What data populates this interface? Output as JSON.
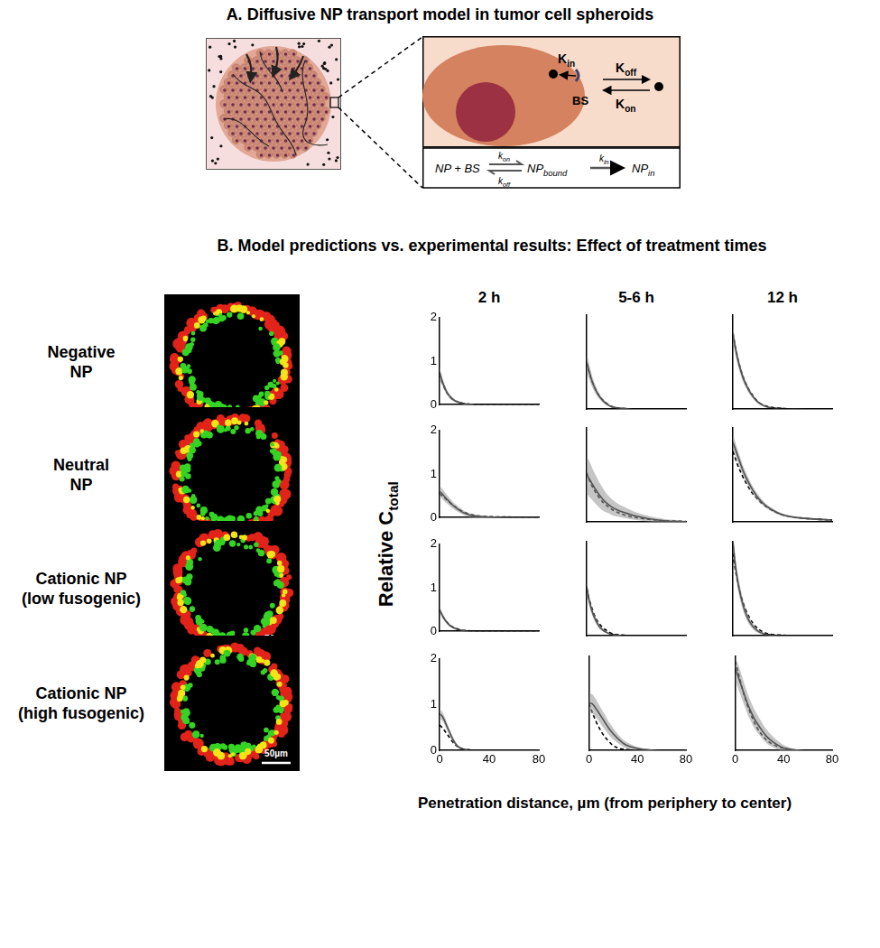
{
  "panel_a": {
    "title": "A. Diffusive NP transport model in tumor cell spheroids",
    "rate_in": {
      "text": "K",
      "subscript": "in"
    },
    "binding_site": "BS",
    "rate_off": {
      "text": "K",
      "subscript": "off"
    },
    "rate_on": {
      "text": "K",
      "subscript": "on"
    },
    "scheme": {
      "reactants": "NP + BS",
      "k_on": {
        "text": "k",
        "subscript": "on"
      },
      "k_off": {
        "text": "k",
        "subscript": "off"
      },
      "bound": {
        "text": "NP",
        "subscript": "bound"
      },
      "k_in": {
        "text": "k",
        "subscript": "in"
      },
      "product": {
        "text": "NP",
        "subscript": "in"
      }
    }
  },
  "panel_b": {
    "title": "B.  Model predictions vs. experimental results: Effect of treatment times",
    "columns": [
      "2 h",
      "5-6 h",
      "12 h"
    ],
    "rows": [
      [
        "Negative",
        "NP"
      ],
      [
        "Neutral",
        "NP"
      ],
      [
        "Cationic NP",
        "(low fusogenic)"
      ],
      [
        "Cationic NP",
        "(high fusogenic)"
      ]
    ],
    "scale_bar": "50µm",
    "y_label": {
      "text": "Relative C",
      "subscript": "total"
    },
    "x_label": "Penetration distance, µm (from periphery to center)"
  },
  "chart_data": [
    {
      "type": "line",
      "x": [
        0,
        2,
        4,
        6,
        8,
        10,
        13,
        16,
        20,
        25,
        30,
        40,
        60,
        80
      ],
      "xlim": [
        0,
        80
      ],
      "xticks": [
        0,
        40,
        80
      ],
      "ylim": [
        0,
        2
      ],
      "yticks": [
        0,
        1,
        2
      ],
      "grid": false,
      "tick_labels": "y",
      "series": [
        {
          "color": "#000000",
          "line_style": "solid",
          "values": [
            0.75,
            0.55,
            0.4,
            0.28,
            0.2,
            0.14,
            0.08,
            0.05,
            0.02,
            0.01,
            0,
            0,
            0,
            0
          ],
          "error": [
            0.12,
            0.1,
            0.08,
            0.06,
            0.05,
            0.04,
            0.03,
            0.02,
            0.01,
            0.01,
            0,
            0,
            0,
            0
          ]
        },
        {
          "color": "#000000",
          "line_style": "dashed",
          "values": [
            0.7,
            0.52,
            0.38,
            0.27,
            0.19,
            0.13,
            0.08,
            0.05,
            0.02,
            0.01,
            0,
            0,
            0,
            0
          ]
        }
      ]
    },
    {
      "type": "line",
      "x": [
        0,
        2,
        4,
        6,
        8,
        10,
        13,
        16,
        20,
        25,
        30,
        40,
        60,
        80
      ],
      "xlim": [
        0,
        80
      ],
      "xticks": [
        0,
        40,
        80
      ],
      "ylim": [
        0,
        2
      ],
      "yticks": [
        0,
        1,
        2
      ],
      "grid": false,
      "tick_labels": false,
      "series": [
        {
          "color": "#000000",
          "line_style": "solid",
          "values": [
            1.0,
            0.8,
            0.62,
            0.48,
            0.37,
            0.28,
            0.18,
            0.11,
            0.05,
            0.02,
            0.01,
            0,
            0,
            0
          ],
          "error": [
            0.2,
            0.16,
            0.13,
            0.1,
            0.08,
            0.06,
            0.04,
            0.03,
            0.02,
            0.01,
            0.01,
            0,
            0,
            0
          ]
        },
        {
          "color": "#000000",
          "line_style": "dashed",
          "values": [
            0.98,
            0.78,
            0.61,
            0.48,
            0.37,
            0.29,
            0.19,
            0.12,
            0.06,
            0.02,
            0.01,
            0,
            0,
            0
          ]
        }
      ]
    },
    {
      "type": "line",
      "x": [
        0,
        2,
        4,
        6,
        8,
        10,
        13,
        16,
        20,
        25,
        30,
        40,
        60,
        80
      ],
      "xlim": [
        0,
        80
      ],
      "xticks": [
        0,
        40,
        80
      ],
      "ylim": [
        0,
        2
      ],
      "yticks": [
        0,
        1,
        2
      ],
      "grid": false,
      "tick_labels": false,
      "series": [
        {
          "color": "#000000",
          "line_style": "solid",
          "values": [
            1.6,
            1.3,
            1.05,
            0.85,
            0.68,
            0.55,
            0.39,
            0.27,
            0.15,
            0.07,
            0.03,
            0.01,
            0,
            0
          ],
          "error": [
            0.15,
            0.14,
            0.12,
            0.1,
            0.09,
            0.07,
            0.06,
            0.04,
            0.03,
            0.02,
            0.01,
            0,
            0,
            0
          ]
        },
        {
          "color": "#000000",
          "line_style": "dashed",
          "values": [
            1.62,
            1.32,
            1.07,
            0.87,
            0.7,
            0.57,
            0.41,
            0.29,
            0.16,
            0.08,
            0.04,
            0.01,
            0,
            0
          ]
        }
      ]
    },
    {
      "type": "line",
      "x": [
        0,
        2,
        4,
        6,
        8,
        10,
        13,
        16,
        20,
        25,
        30,
        40,
        60,
        80
      ],
      "xlim": [
        0,
        80
      ],
      "xticks": [
        0,
        40,
        80
      ],
      "ylim": [
        0,
        2
      ],
      "yticks": [
        0,
        1,
        2
      ],
      "grid": false,
      "tick_labels": "y",
      "series": [
        {
          "color": "#000000",
          "line_style": "solid",
          "values": [
            0.6,
            0.55,
            0.48,
            0.42,
            0.36,
            0.3,
            0.23,
            0.17,
            0.1,
            0.05,
            0.03,
            0.01,
            0,
            0
          ],
          "error": [
            0.12,
            0.12,
            0.11,
            0.1,
            0.09,
            0.08,
            0.07,
            0.06,
            0.05,
            0.04,
            0.03,
            0.02,
            0.01,
            0.01
          ]
        },
        {
          "color": "#000000",
          "line_style": "dashed",
          "values": [
            0.55,
            0.5,
            0.45,
            0.4,
            0.35,
            0.3,
            0.24,
            0.18,
            0.12,
            0.07,
            0.04,
            0.02,
            0.01,
            0
          ]
        }
      ]
    },
    {
      "type": "line",
      "x": [
        0,
        2,
        4,
        6,
        8,
        10,
        13,
        16,
        20,
        25,
        30,
        40,
        60,
        80
      ],
      "xlim": [
        0,
        80
      ],
      "xticks": [
        0,
        40,
        80
      ],
      "ylim": [
        0,
        2
      ],
      "yticks": [
        0,
        1,
        2
      ],
      "grid": false,
      "tick_labels": false,
      "series": [
        {
          "color": "#000000",
          "line_style": "solid",
          "values": [
            1.0,
            0.92,
            0.83,
            0.74,
            0.66,
            0.58,
            0.48,
            0.4,
            0.32,
            0.25,
            0.2,
            0.12,
            0.03,
            0
          ],
          "error": [
            0.4,
            0.38,
            0.35,
            0.32,
            0.3,
            0.27,
            0.24,
            0.2,
            0.17,
            0.14,
            0.12,
            0.08,
            0.04,
            0.02
          ]
        },
        {
          "color": "#000000",
          "line_style": "dashed",
          "values": [
            1.05,
            0.9,
            0.78,
            0.68,
            0.6,
            0.52,
            0.42,
            0.35,
            0.27,
            0.2,
            0.15,
            0.09,
            0.03,
            0.01
          ]
        }
      ]
    },
    {
      "type": "line",
      "x": [
        0,
        2,
        4,
        6,
        8,
        10,
        13,
        16,
        20,
        25,
        30,
        40,
        60,
        80
      ],
      "xlim": [
        0,
        80
      ],
      "xticks": [
        0,
        40,
        80
      ],
      "ylim": [
        0,
        2
      ],
      "yticks": [
        0,
        1,
        2
      ],
      "grid": false,
      "tick_labels": false,
      "series": [
        {
          "color": "#000000",
          "line_style": "solid",
          "values": [
            1.7,
            1.55,
            1.4,
            1.25,
            1.1,
            0.98,
            0.82,
            0.68,
            0.52,
            0.38,
            0.28,
            0.15,
            0.07,
            0.04
          ],
          "error": [
            0.15,
            0.14,
            0.13,
            0.12,
            0.11,
            0.1,
            0.09,
            0.08,
            0.07,
            0.05,
            0.04,
            0.03,
            0.02,
            0.01
          ]
        },
        {
          "color": "#000000",
          "line_style": "dashed",
          "values": [
            1.5,
            1.35,
            1.2,
            1.08,
            0.96,
            0.86,
            0.72,
            0.6,
            0.48,
            0.36,
            0.27,
            0.15,
            0.07,
            0.04
          ]
        }
      ]
    },
    {
      "type": "line",
      "x": [
        0,
        2,
        4,
        6,
        8,
        10,
        13,
        16,
        20,
        25,
        30,
        40,
        60,
        80
      ],
      "xlim": [
        0,
        80
      ],
      "xticks": [
        0,
        40,
        80
      ],
      "ylim": [
        0,
        2
      ],
      "yticks": [
        0,
        1,
        2
      ],
      "grid": false,
      "tick_labels": "y",
      "series": [
        {
          "color": "#000000",
          "line_style": "solid",
          "values": [
            0.5,
            0.38,
            0.28,
            0.2,
            0.14,
            0.1,
            0.06,
            0.03,
            0.01,
            0,
            0,
            0,
            0,
            0
          ],
          "error": [
            0.08,
            0.06,
            0.05,
            0.04,
            0.03,
            0.02,
            0.02,
            0.01,
            0.01,
            0,
            0,
            0,
            0,
            0
          ]
        },
        {
          "color": "#000000",
          "line_style": "dashed",
          "values": [
            0.48,
            0.37,
            0.28,
            0.21,
            0.15,
            0.11,
            0.07,
            0.04,
            0.02,
            0.01,
            0,
            0,
            0,
            0
          ]
        }
      ]
    },
    {
      "type": "line",
      "x": [
        0,
        2,
        4,
        6,
        8,
        10,
        13,
        16,
        20,
        25,
        30,
        40,
        60,
        80
      ],
      "xlim": [
        0,
        80
      ],
      "xticks": [
        0,
        40,
        80
      ],
      "ylim": [
        0,
        2
      ],
      "yticks": [
        0,
        1,
        2
      ],
      "grid": false,
      "tick_labels": false,
      "series": [
        {
          "color": "#000000",
          "line_style": "solid",
          "values": [
            1.05,
            0.75,
            0.55,
            0.4,
            0.29,
            0.2,
            0.12,
            0.07,
            0.03,
            0.01,
            0,
            0,
            0,
            0
          ],
          "error": [
            0.1,
            0.09,
            0.08,
            0.07,
            0.06,
            0.05,
            0.03,
            0.02,
            0.01,
            0.01,
            0,
            0,
            0,
            0
          ]
        },
        {
          "color": "#000000",
          "line_style": "dashed",
          "values": [
            1.0,
            0.78,
            0.6,
            0.45,
            0.34,
            0.26,
            0.17,
            0.11,
            0.05,
            0.02,
            0.01,
            0,
            0,
            0
          ]
        }
      ]
    },
    {
      "type": "line",
      "x": [
        0,
        2,
        4,
        6,
        8,
        10,
        13,
        16,
        20,
        25,
        30,
        40,
        60,
        80
      ],
      "xlim": [
        0,
        80
      ],
      "xticks": [
        0,
        40,
        80
      ],
      "ylim": [
        0,
        2
      ],
      "yticks": [
        0,
        1,
        2
      ],
      "grid": false,
      "tick_labels": false,
      "series": [
        {
          "color": "#000000",
          "line_style": "solid",
          "values": [
            2.0,
            1.5,
            1.15,
            0.88,
            0.67,
            0.5,
            0.32,
            0.2,
            0.1,
            0.04,
            0.02,
            0,
            0,
            0
          ],
          "error": [
            0.2,
            0.18,
            0.16,
            0.14,
            0.12,
            0.1,
            0.08,
            0.06,
            0.04,
            0.02,
            0.01,
            0,
            0,
            0
          ]
        },
        {
          "color": "#000000",
          "line_style": "dashed",
          "values": [
            1.75,
            1.4,
            1.12,
            0.9,
            0.72,
            0.57,
            0.4,
            0.27,
            0.15,
            0.07,
            0.03,
            0.01,
            0,
            0
          ]
        }
      ]
    },
    {
      "type": "line",
      "x": [
        0,
        2,
        4,
        6,
        8,
        10,
        13,
        16,
        20,
        25,
        30,
        40,
        60,
        80
      ],
      "xlim": [
        0,
        80
      ],
      "xticks": [
        0,
        40,
        80
      ],
      "ylim": [
        0,
        2
      ],
      "yticks": [
        0,
        1,
        2
      ],
      "grid": false,
      "tick_labels": true,
      "series": [
        {
          "color": "#000000",
          "line_style": "solid",
          "values": [
            0.8,
            0.75,
            0.65,
            0.52,
            0.4,
            0.28,
            0.14,
            0.06,
            0.02,
            0,
            0,
            0,
            0,
            0
          ],
          "error": [
            0.1,
            0.1,
            0.09,
            0.08,
            0.07,
            0.06,
            0.04,
            0.02,
            0.01,
            0,
            0,
            0,
            0,
            0
          ]
        },
        {
          "color": "#000000",
          "line_style": "dashed",
          "values": [
            0.55,
            0.5,
            0.43,
            0.36,
            0.28,
            0.2,
            0.11,
            0.06,
            0.02,
            0.01,
            0,
            0,
            0,
            0
          ]
        }
      ]
    },
    {
      "type": "line",
      "x": [
        0,
        2,
        4,
        6,
        8,
        10,
        13,
        16,
        20,
        25,
        30,
        40,
        60,
        80
      ],
      "xlim": [
        0,
        80
      ],
      "xticks": [
        0,
        40,
        80
      ],
      "ylim": [
        0,
        2
      ],
      "yticks": [
        0,
        1,
        2
      ],
      "grid": false,
      "tick_labels": "x",
      "series": [
        {
          "color": "#000000",
          "line_style": "solid",
          "values": [
            1.0,
            1.0,
            0.95,
            0.88,
            0.8,
            0.72,
            0.6,
            0.48,
            0.35,
            0.22,
            0.12,
            0.04,
            0,
            0
          ],
          "error": [
            0.2,
            0.2,
            0.2,
            0.19,
            0.18,
            0.17,
            0.16,
            0.14,
            0.12,
            0.09,
            0.07,
            0.03,
            0,
            0
          ]
        },
        {
          "color": "#000000",
          "line_style": "dashed",
          "values": [
            1.0,
            0.85,
            0.72,
            0.6,
            0.5,
            0.4,
            0.29,
            0.2,
            0.1,
            0.04,
            0.02,
            0,
            0,
            0
          ]
        }
      ]
    },
    {
      "type": "line",
      "x": [
        0,
        2,
        4,
        6,
        8,
        10,
        13,
        16,
        20,
        25,
        30,
        40,
        60,
        80
      ],
      "xlim": [
        0,
        80
      ],
      "xticks": [
        0,
        40,
        80
      ],
      "ylim": [
        0,
        2
      ],
      "yticks": [
        0,
        1,
        2
      ],
      "grid": false,
      "tick_labels": "x",
      "series": [
        {
          "color": "#000000",
          "line_style": "solid",
          "values": [
            1.75,
            1.6,
            1.45,
            1.3,
            1.15,
            1.0,
            0.82,
            0.66,
            0.5,
            0.32,
            0.2,
            0.05,
            0,
            0
          ],
          "error": [
            0.25,
            0.25,
            0.25,
            0.24,
            0.23,
            0.22,
            0.21,
            0.2,
            0.18,
            0.15,
            0.12,
            0.06,
            0,
            0
          ]
        },
        {
          "color": "#000000",
          "line_style": "dashed",
          "values": [
            1.9,
            1.7,
            1.5,
            1.3,
            1.12,
            0.96,
            0.76,
            0.58,
            0.4,
            0.24,
            0.14,
            0.04,
            0,
            0
          ]
        }
      ]
    }
  ]
}
